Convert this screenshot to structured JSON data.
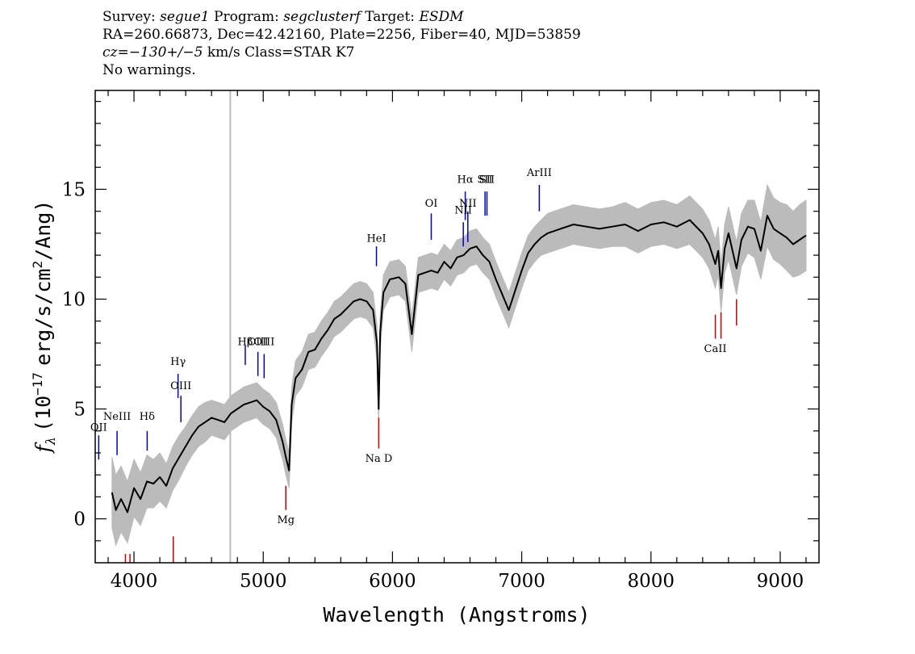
{
  "header": {
    "line1": {
      "survey_label": "Survey:",
      "survey_value": "segue1",
      "program_label": "Program:",
      "program_value": "segclusterf",
      "target_label": "Target:",
      "target_value": "ESDM"
    },
    "line2": "RA=260.66873, Dec=42.42160, Plate=2256, Fiber=40, MJD=53859",
    "line3": {
      "cz_value": "cz=−130+/−5",
      "cz_unit": "km/s",
      "class_text": "Class=STAR K7"
    },
    "line4": "No warnings."
  },
  "chart_data": {
    "type": "line",
    "xlabel": "Wavelength (Angstroms)",
    "ylabel_prefix": "f",
    "ylabel_sub": "λ",
    "ylabel_main": "(10",
    "ylabel_exp": "−17",
    "ylabel_rest": "erg/s/cm",
    "ylabel_exp2": "2",
    "ylabel_end": "/Ang)",
    "xlim": [
      3700,
      9300
    ],
    "ylim": [
      -2,
      19.5
    ],
    "xticks": [
      4000,
      5000,
      6000,
      7000,
      8000,
      9000
    ],
    "xtick_labels": [
      "4000",
      "5000",
      "6000",
      "7000",
      "8000",
      "9000"
    ],
    "yticks": [
      0,
      5,
      10,
      15
    ],
    "ytick_labels": [
      "0",
      "5",
      "10",
      "15"
    ],
    "vertical_marker_x": 4745,
    "colors": {
      "spectrum": "#000000",
      "error_band": "#bbbbbb",
      "emission_line": "#0000cc",
      "absorption_line": "#cc0000",
      "marker": "#bbbbbb"
    },
    "series": [
      {
        "x": [
          3830,
          3860,
          3900,
          3950,
          4000,
          4050,
          4100,
          4150,
          4200,
          4250,
          4300,
          4350,
          4400,
          4450,
          4500,
          4550,
          4600,
          4650,
          4700,
          4750,
          4800,
          4850,
          4900,
          4950,
          5000,
          5050,
          5100,
          5150,
          5175,
          5200,
          5220,
          5250,
          5300,
          5350,
          5400,
          5450,
          5500,
          5550,
          5600,
          5650,
          5700,
          5750,
          5800,
          5850,
          5880,
          5893,
          5905,
          5930,
          5980,
          6050,
          6100,
          6150,
          6200,
          6250,
          6300,
          6350,
          6400,
          6450,
          6500,
          6550,
          6600,
          6650,
          6700,
          6750,
          6800,
          6850,
          6900,
          6950,
          7000,
          7050,
          7100,
          7150,
          7200,
          7300,
          7400,
          7500,
          7600,
          7700,
          7800,
          7900,
          8000,
          8100,
          8200,
          8300,
          8400,
          8450,
          8498,
          8520,
          8542,
          8570,
          8600,
          8662,
          8700,
          8750,
          8800,
          8850,
          8900,
          8950,
          9000,
          9050,
          9100,
          9150,
          9200
        ],
        "y": [
          1.2,
          0.4,
          0.9,
          0.3,
          1.4,
          0.9,
          1.7,
          1.6,
          1.9,
          1.5,
          2.3,
          2.8,
          3.3,
          3.8,
          4.2,
          4.4,
          4.6,
          4.5,
          4.4,
          4.8,
          5.0,
          5.2,
          5.3,
          5.4,
          5.1,
          4.9,
          4.5,
          3.5,
          2.8,
          2.2,
          5.2,
          6.4,
          6.8,
          7.6,
          7.7,
          8.2,
          8.6,
          9.1,
          9.3,
          9.6,
          9.9,
          10.0,
          9.9,
          9.5,
          8.0,
          5.0,
          8.5,
          10.3,
          10.9,
          11.0,
          10.7,
          8.4,
          11.1,
          11.2,
          11.3,
          11.2,
          11.7,
          11.4,
          11.9,
          12.0,
          12.3,
          12.4,
          12.0,
          11.7,
          10.9,
          10.2,
          9.5,
          10.4,
          11.3,
          12.1,
          12.5,
          12.8,
          13.0,
          13.2,
          13.4,
          13.3,
          13.2,
          13.3,
          13.4,
          13.1,
          13.4,
          13.5,
          13.3,
          13.6,
          13.0,
          12.5,
          11.6,
          12.2,
          10.5,
          12.3,
          13.0,
          11.4,
          12.7,
          13.3,
          13.2,
          12.2,
          13.8,
          13.2,
          13.0,
          12.8,
          12.5,
          12.7,
          12.9
        ],
        "error": [
          1.6,
          1.6,
          1.5,
          1.4,
          1.3,
          1.2,
          1.2,
          1.1,
          1.1,
          1.0,
          1.0,
          1.0,
          0.9,
          0.9,
          0.9,
          0.9,
          0.8,
          0.8,
          0.8,
          0.8,
          0.8,
          0.8,
          0.8,
          0.8,
          0.8,
          0.8,
          0.8,
          0.8,
          0.8,
          0.8,
          0.8,
          0.8,
          0.8,
          0.8,
          0.8,
          0.8,
          0.8,
          0.8,
          0.8,
          0.8,
          0.8,
          0.8,
          0.8,
          0.8,
          0.8,
          0.8,
          0.8,
          0.8,
          0.8,
          0.8,
          0.8,
          0.8,
          0.8,
          0.8,
          0.8,
          0.8,
          0.8,
          0.8,
          0.8,
          0.8,
          0.8,
          0.8,
          0.8,
          0.8,
          0.8,
          0.8,
          0.8,
          0.8,
          0.8,
          0.8,
          0.8,
          0.8,
          0.9,
          0.9,
          0.9,
          0.9,
          0.9,
          0.9,
          1.0,
          1.0,
          1.0,
          1.0,
          1.0,
          1.1,
          1.1,
          1.1,
          1.1,
          1.1,
          1.1,
          1.1,
          1.2,
          1.2,
          1.2,
          1.2,
          1.3,
          1.3,
          1.4,
          1.4,
          1.4,
          1.5,
          1.5,
          1.6,
          1.6
        ]
      }
    ],
    "emission_lines": [
      {
        "label": "OII",
        "x": 3727,
        "y1": 2.7,
        "y2": 3.8,
        "label_y": 4.0
      },
      {
        "label": "NeIII",
        "x": 3869,
        "y1": 2.9,
        "y2": 4.0,
        "label_y": 4.5
      },
      {
        "label": "Hδ",
        "x": 4102,
        "y1": 3.1,
        "y2": 4.0,
        "label_y": 4.5
      },
      {
        "label": "Hγ",
        "x": 4341,
        "y1": 5.5,
        "y2": 6.6,
        "label_y": 7.0
      },
      {
        "label": "OIII",
        "x": 4363,
        "y1": 4.4,
        "y2": 5.6,
        "label_y": 5.9
      },
      {
        "label": "Hβ",
        "x": 4861,
        "y1": 7.0,
        "y2": 7.9,
        "label_y": 7.9
      },
      {
        "label": "OIII",
        "x": 4959,
        "y1": 6.5,
        "y2": 7.6,
        "label_y": 7.9
      },
      {
        "label": "OIII",
        "x": 5007,
        "y1": 6.4,
        "y2": 7.5,
        "label_y": 7.9
      },
      {
        "label": "HeI",
        "x": 5876,
        "y1": 11.5,
        "y2": 12.4,
        "label_y": 12.6
      },
      {
        "label": "OI",
        "x": 6300,
        "y1": 12.7,
        "y2": 13.9,
        "label_y": 14.2
      },
      {
        "label": "NII",
        "x": 6548,
        "y1": 12.4,
        "y2": 13.5,
        "label_y": 13.9
      },
      {
        "label": "Hα",
        "x": 6563,
        "y1": 13.6,
        "y2": 14.9,
        "label_y": 15.3
      },
      {
        "label": "NII",
        "x": 6583,
        "y1": 12.6,
        "y2": 14.0,
        "label_y": 14.2
      },
      {
        "label": "SII",
        "x": 6716,
        "y1": 13.8,
        "y2": 14.9,
        "label_y": 15.3
      },
      {
        "label": "SII",
        "x": 6731,
        "y1": 13.8,
        "y2": 14.9,
        "label_y": 15.3
      },
      {
        "label": "ArIII",
        "x": 7136,
        "y1": 14.0,
        "y2": 15.2,
        "label_y": 15.6
      }
    ],
    "absorption_lines": [
      {
        "label": "",
        "x": 3934,
        "y1": -2.0,
        "y2": -1.6,
        "label_y": null
      },
      {
        "label": "",
        "x": 3969,
        "y1": -2.0,
        "y2": -1.6,
        "label_y": null
      },
      {
        "label": "",
        "x": 4304,
        "y1": -2.0,
        "y2": -0.8,
        "label_y": null
      },
      {
        "label": "Mg",
        "x": 5175,
        "y1": 0.4,
        "y2": 1.5,
        "label_y": -0.2
      },
      {
        "label": "Na D",
        "x": 5894,
        "y1": 3.2,
        "y2": 4.6,
        "label_y": 2.6
      },
      {
        "label": "CaII",
        "x": 8498,
        "y1": 8.2,
        "y2": 9.3,
        "label_y": 7.6
      },
      {
        "label": "",
        "x": 8542,
        "y1": 8.2,
        "y2": 9.4,
        "label_y": null
      },
      {
        "label": "",
        "x": 8662,
        "y1": 8.8,
        "y2": 10.0,
        "label_y": null
      }
    ]
  }
}
